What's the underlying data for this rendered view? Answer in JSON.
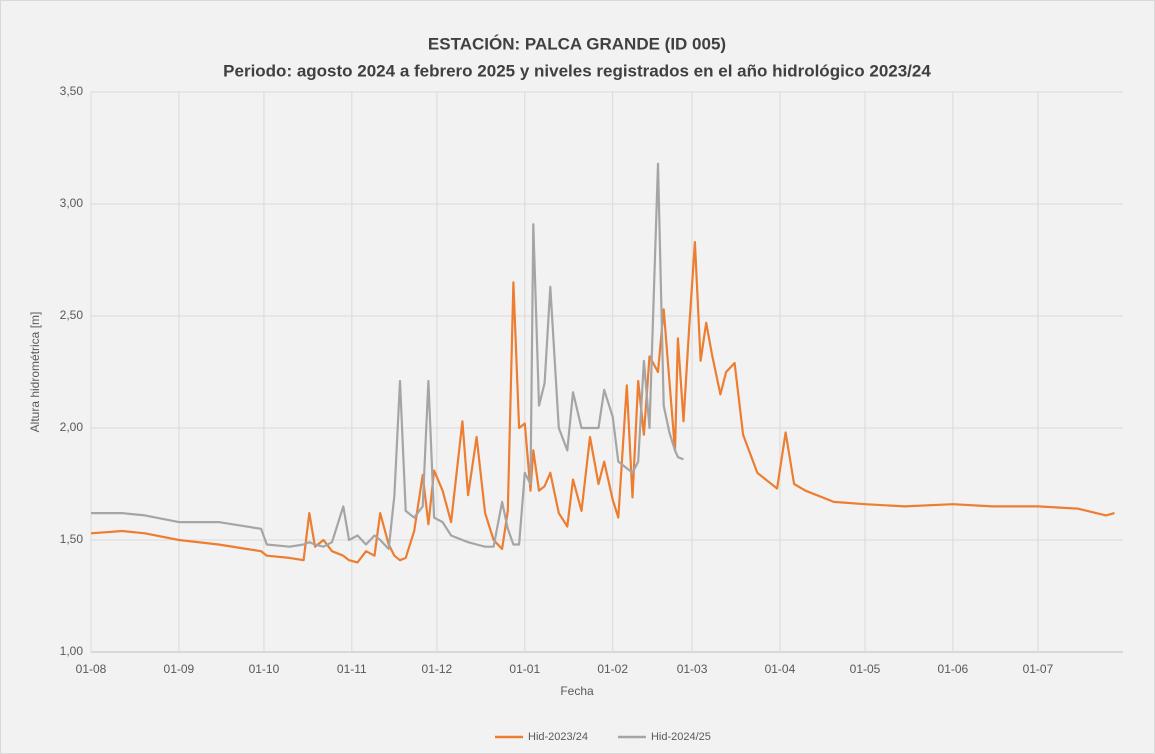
{
  "chart_data": {
    "type": "line",
    "title": "ESTACIÓN: PALCA GRANDE (ID 005)",
    "subtitle": "Periodo: agosto 2024 a febrero 2025 y niveles registrados en el año hidrológico 2023/24",
    "x_label": "Fecha",
    "y_label": "Altura hidrométrica [m]",
    "x": [
      "01-08",
      "12-08",
      "20-08",
      "01-09",
      "15-09",
      "25-09",
      "30-09",
      "02-10",
      "10-10",
      "15-10",
      "17-10",
      "19-10",
      "22-10",
      "25-10",
      "29-10",
      "31-10",
      "03-11",
      "06-11",
      "09-11",
      "11-11",
      "14-11",
      "16-11",
      "18-11",
      "20-11",
      "23-11",
      "26-11",
      "28-11",
      "30-11",
      "03-12",
      "06-12",
      "10-12",
      "12-12",
      "15-12",
      "18-12",
      "21-12",
      "24-12",
      "26-12",
      "28-12",
      "30-12",
      "01-01",
      "03-01",
      "04-01",
      "06-01",
      "08-01",
      "10-01",
      "13-01",
      "16-01",
      "18-01",
      "21-01",
      "24-01",
      "27-01",
      "29-01",
      "01-02",
      "03-02",
      "06-02",
      "08-02",
      "10-02",
      "12-02",
      "14-02",
      "17-02",
      "19-02",
      "21-02",
      "23-02",
      "24-02",
      "26-02",
      "28-02",
      "02-03",
      "04-03",
      "06-03",
      "08-03",
      "11-03",
      "13-03",
      "16-03",
      "19-03",
      "24-03",
      "28-03",
      "31-03",
      "03-04",
      "06-04",
      "10-04",
      "20-04",
      "01-05",
      "15-05",
      "01-06",
      "15-06",
      "01-07",
      "15-07",
      "25-07",
      "28-07"
    ],
    "xlim": [
      "01-08",
      "31-07"
    ],
    "xticks": [
      "01-08",
      "01-09",
      "01-10",
      "01-11",
      "01-12",
      "01-01",
      "01-02",
      "01-03",
      "01-04",
      "01-05",
      "01-06",
      "01-07"
    ],
    "ylim": [
      1,
      3.5
    ],
    "yticks": [
      {
        "value": 1,
        "label": "1,00"
      },
      {
        "value": 1.5,
        "label": "1,50"
      },
      {
        "value": 2,
        "label": "2,00"
      },
      {
        "value": 2.5,
        "label": "2,50"
      },
      {
        "value": 3,
        "label": "3,00"
      },
      {
        "value": 3.5,
        "label": "3,50"
      }
    ],
    "grid": true,
    "legend": "bottom",
    "series": [
      {
        "name": "Hid-2023/24",
        "color": "#ED7D31",
        "values": [
          1.53,
          1.54,
          1.53,
          1.5,
          1.48,
          1.46,
          1.45,
          1.43,
          1.42,
          1.41,
          1.62,
          1.47,
          1.5,
          1.45,
          1.43,
          1.41,
          1.4,
          1.45,
          1.43,
          1.62,
          1.48,
          1.43,
          1.41,
          1.42,
          1.54,
          1.79,
          1.57,
          1.81,
          1.72,
          1.58,
          2.03,
          1.7,
          1.96,
          1.62,
          1.5,
          1.46,
          1.63,
          2.65,
          2.0,
          2.02,
          1.72,
          1.9,
          1.72,
          1.74,
          1.8,
          1.62,
          1.56,
          1.77,
          1.63,
          1.96,
          1.75,
          1.85,
          1.68,
          1.6,
          2.19,
          1.69,
          2.21,
          1.97,
          2.32,
          2.25,
          2.53,
          2.21,
          1.9,
          2.4,
          2.03,
          2.45,
          2.83,
          2.3,
          2.47,
          2.33,
          2.15,
          2.25,
          2.29,
          1.97,
          1.8,
          1.76,
          1.73,
          1.98,
          1.75,
          1.72,
          1.67,
          1.66,
          1.65,
          1.66,
          1.65,
          1.65,
          1.64,
          1.61,
          1.62
        ]
      },
      {
        "name": "Hid-2024/25",
        "color": "#A5A5A5",
        "values": [
          1.62,
          1.62,
          1.61,
          1.58,
          1.58,
          1.56,
          1.55,
          1.48,
          1.47,
          1.48,
          1.49,
          1.48,
          1.47,
          1.49,
          1.65,
          1.5,
          1.52,
          1.48,
          1.52,
          1.5,
          1.46,
          1.7,
          2.21,
          1.63,
          1.6,
          1.65,
          2.21,
          1.6,
          1.58,
          1.52,
          1.5,
          1.49,
          1.48,
          1.47,
          1.47,
          1.67,
          1.55,
          1.48,
          1.48,
          1.8,
          1.75,
          2.91,
          2.1,
          2.2,
          2.63,
          2.0,
          1.9,
          2.16,
          2.0,
          2.0,
          2.0,
          2.17,
          2.05,
          1.85,
          1.82,
          1.8,
          1.85,
          2.3,
          2.0,
          3.18,
          2.1,
          1.98,
          1.9,
          1.87,
          1.86,
          null,
          null,
          null,
          null,
          null,
          null,
          null,
          null,
          null,
          null,
          null,
          null,
          null,
          null,
          null,
          null,
          null,
          null,
          null,
          null,
          null,
          null,
          null,
          null
        ]
      }
    ]
  }
}
